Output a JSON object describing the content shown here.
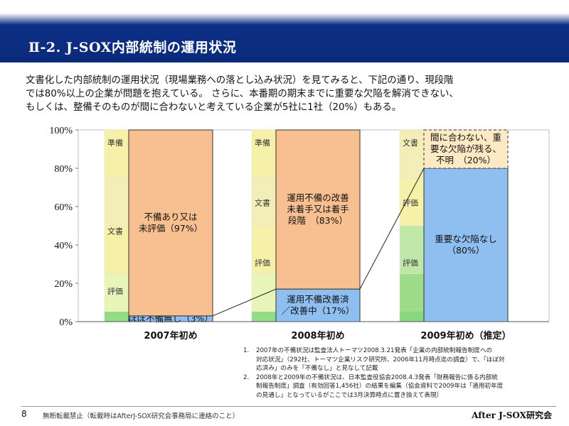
{
  "slide": {
    "title": "Ⅱ-2. J-SOX内部統制の運用状況",
    "intro_lines": [
      "文書化した内部統制の運用状況（現場業務への落とし込み状況）を見てみると、下記の通り、現段階",
      "では80%以上の企業が問題を抱えている。 さらに、本番期の期末までに重要な欠陥を解消できない、",
      "もしくは、整備そのものが間に合わないと考えている企業が5社に1社（20%）もある。"
    ],
    "notes": [
      {
        "num": "1.",
        "lines": [
          "2007年の不備状況は監査法人トーマツ2008.3.21発表「企業の内部統制報告制度への",
          "対応状況」（292社、トーマツ企業リスク研究所、2006年11月時点迄の調査）で、「ほぼ対",
          "応済み」のみを「不備なし」と見なして記載"
        ]
      },
      {
        "num": "2.",
        "lines": [
          "2008年と2009年の不備状況は、日本監査役協会2008.4.3発表「財務報告に係る内部統",
          "制報告制度」調査（有効回答1,456社）の結果を編集（協会資料で2009年は「適用初年度",
          "の見通し」となっているがここでは3月決算時点に置き換えて表現）"
        ]
      }
    ],
    "page_number": "8",
    "footer_notice": "無断転載禁止（転載時はAfterJ-SOX研究会事務局に連絡のこと）",
    "footer_org": "After J-SOX研究会"
  },
  "chart_data": {
    "type": "bar",
    "stacked": true,
    "yaxis_ticks": [
      "0%",
      "20%",
      "40%",
      "60%",
      "80%",
      "100%"
    ],
    "ylim": [
      0,
      100
    ],
    "categories": [
      "2007年初め",
      "2008年初め",
      "2009年初め（推定）"
    ],
    "bars": [
      {
        "category": "2007年初め",
        "segments": [
          {
            "label_lines": [
              "ほぼ不備無し（3%）"
            ],
            "value": 3,
            "color": "#8fbff0"
          },
          {
            "label_lines": [
              "不備あり又は",
              "未評価（97%）"
            ],
            "value": 97,
            "color": "#f8c090"
          }
        ],
        "background_labels": [
          "準備",
          "文書",
          "評価"
        ]
      },
      {
        "category": "2008年初め",
        "segments": [
          {
            "label_lines": [
              "運用不備改善済",
              "／改善中（17%）"
            ],
            "value": 17,
            "color": "#8fbff0"
          },
          {
            "label_lines": [
              "運用不備の改善",
              "未着手又は着手",
              "段階　（83%）"
            ],
            "value": 83,
            "color": "#f8c090"
          }
        ],
        "background_labels": [
          "準備",
          "文書",
          "評価"
        ]
      },
      {
        "category": "2009年初め（推定）",
        "segments": [
          {
            "label_lines": [
              "重要な欠陥なし",
              "（80%）"
            ],
            "value": 80,
            "color": "#8fbff0"
          },
          {
            "label_lines": [
              "間に合わない、重",
              "要な欠陥が残る、",
              "不明　（20%）"
            ],
            "value": 20,
            "color": "#fde9c4"
          }
        ],
        "background_labels": [
          "文書",
          "評価",
          "評価"
        ]
      }
    ]
  }
}
